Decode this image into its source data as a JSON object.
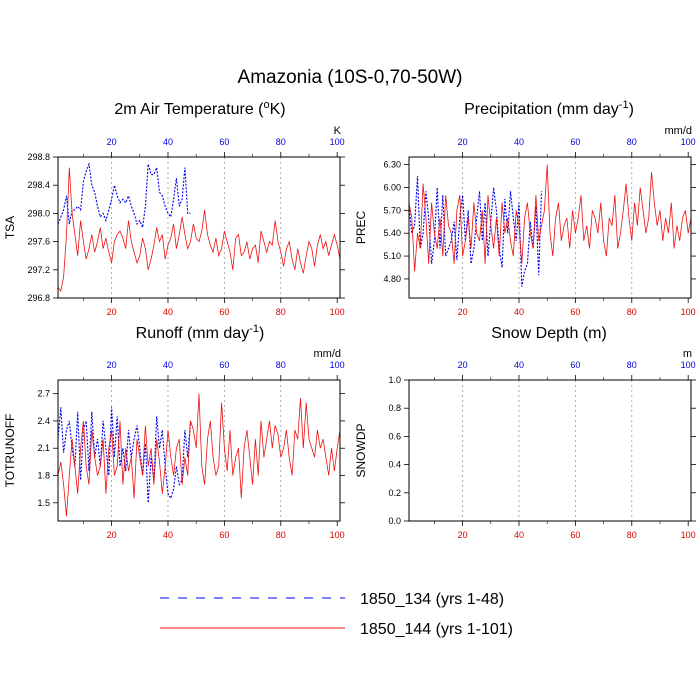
{
  "figure": {
    "title": "Amazonia (10S-0,70-50W)"
  },
  "colors": {
    "series_a": "#0000ee",
    "series_b": "#ee1111",
    "top_ticks": "#0000dd",
    "bottom_ticks": "#dd0000",
    "grid": "#999999"
  },
  "legend": {
    "entries": [
      {
        "label": "1850_134 (yrs 1-48)",
        "style": "dashed",
        "color_key": "series_a"
      },
      {
        "label": "1850_144 (yrs 1-101)",
        "style": "solid",
        "color_key": "series_b"
      }
    ]
  },
  "chart_data": [
    {
      "type": "line",
      "title_main": "2m Air Temperature (",
      "title_sup": "o",
      "title_after": "K)",
      "ylabel": "TSA",
      "units": "K",
      "xlim": [
        1,
        101
      ],
      "ylim": [
        296.8,
        298.8
      ],
      "yticks": [
        "296.8",
        "297.2",
        "297.6",
        "298.0",
        "298.4",
        "298.8"
      ],
      "xticks_top": [
        "20",
        "40",
        "60",
        "80",
        "100"
      ],
      "xticks_bottom": [
        "20",
        "40",
        "60",
        "80",
        "100"
      ],
      "series": [
        {
          "name": "1850_134 (yrs 1-48)",
          "x_start": 1,
          "values": [
            297.85,
            297.95,
            298.05,
            298.25,
            297.85,
            298.05,
            298.05,
            298.1,
            298.05,
            298.45,
            298.6,
            298.7,
            298.4,
            298.3,
            298.1,
            297.95,
            298.0,
            297.9,
            298.05,
            298.2,
            298.4,
            298.25,
            298.15,
            298.2,
            298.15,
            298.25,
            298.1,
            298.0,
            297.85,
            297.9,
            297.8,
            298.1,
            298.7,
            298.55,
            298.55,
            298.65,
            298.3,
            298.25,
            298.1,
            298.0,
            297.95,
            298.2,
            298.5,
            298.1,
            298.2,
            298.65,
            298.0,
            298.0
          ]
        },
        {
          "name": "1850_144 (yrs 1-101)",
          "x_start": 1,
          "values": [
            296.95,
            296.9,
            297.1,
            297.7,
            298.65,
            298.0,
            297.7,
            297.4,
            297.9,
            297.6,
            297.35,
            297.5,
            297.7,
            297.45,
            297.6,
            297.8,
            297.5,
            297.65,
            297.45,
            297.3,
            297.6,
            297.7,
            297.75,
            297.65,
            297.5,
            297.9,
            297.6,
            297.45,
            297.3,
            297.4,
            297.65,
            297.5,
            297.2,
            297.35,
            297.55,
            297.8,
            297.6,
            297.7,
            297.35,
            297.55,
            297.65,
            297.85,
            297.5,
            297.7,
            297.95,
            297.7,
            297.5,
            297.6,
            297.85,
            297.65,
            297.6,
            297.75,
            298.05,
            297.7,
            297.55,
            297.45,
            297.65,
            297.4,
            297.5,
            297.75,
            297.6,
            297.45,
            297.2,
            297.65,
            297.7,
            297.4,
            297.45,
            297.6,
            297.35,
            297.5,
            297.55,
            297.3,
            297.75,
            297.6,
            297.45,
            297.6,
            297.55,
            297.9,
            297.6,
            297.45,
            297.25,
            297.5,
            297.6,
            297.35,
            297.2,
            297.5,
            297.3,
            297.15,
            297.4,
            297.6,
            297.5,
            297.25,
            297.55,
            297.7,
            297.5,
            297.6,
            297.4,
            297.55,
            297.7,
            297.55,
            297.35
          ]
        }
      ]
    },
    {
      "type": "line",
      "title_main": "Precipitation (mm day",
      "title_sup": "-1",
      "title_after": ")",
      "ylabel": "PREC",
      "units": "mm/d",
      "xlim": [
        1,
        101
      ],
      "ylim": [
        4.55,
        6.4
      ],
      "yticks": [
        "4.80",
        "5.10",
        "5.40",
        "5.70",
        "6.00",
        "6.30"
      ],
      "xticks_top": [
        "20",
        "40",
        "60",
        "80",
        "100"
      ],
      "xticks_bottom": [
        "20",
        "40",
        "60",
        "80",
        "100"
      ],
      "series": [
        {
          "name": "1850_134 (yrs 1-48)",
          "x_start": 1,
          "values": [
            5.75,
            5.4,
            5.5,
            6.15,
            5.2,
            5.4,
            5.95,
            5.6,
            5.0,
            5.3,
            6.0,
            5.2,
            5.9,
            5.1,
            5.2,
            5.3,
            5.55,
            5.05,
            5.6,
            5.9,
            5.3,
            5.7,
            5.0,
            5.2,
            5.6,
            5.95,
            5.3,
            5.8,
            5.1,
            5.55,
            6.0,
            5.7,
            5.2,
            4.95,
            5.85,
            5.4,
            5.95,
            5.6,
            5.3,
            5.8,
            4.7,
            4.9,
            5.0,
            5.55,
            5.2,
            5.75,
            4.85,
            5.95
          ]
        },
        {
          "name": "1850_144 (yrs 1-101)",
          "x_start": 1,
          "values": [
            5.8,
            5.6,
            4.9,
            5.4,
            5.2,
            6.05,
            5.6,
            5.0,
            5.8,
            5.4,
            5.2,
            5.6,
            5.1,
            5.9,
            5.5,
            5.4,
            5.0,
            5.7,
            5.9,
            5.1,
            5.3,
            5.6,
            5.2,
            5.8,
            5.4,
            5.3,
            5.7,
            5.0,
            5.9,
            5.5,
            5.2,
            5.6,
            5.1,
            5.8,
            5.4,
            5.6,
            5.3,
            5.1,
            5.7,
            5.5,
            5.0,
            5.6,
            5.8,
            5.4,
            5.2,
            5.9,
            5.3,
            5.5,
            5.7,
            6.3,
            5.4,
            5.1,
            5.6,
            5.8,
            5.3,
            5.5,
            5.6,
            5.2,
            5.7,
            5.4,
            5.6,
            5.9,
            5.3,
            5.5,
            5.2,
            5.7,
            5.6,
            5.4,
            5.8,
            5.3,
            5.1,
            5.6,
            5.5,
            5.9,
            5.2,
            5.4,
            5.7,
            6.05,
            5.6,
            5.3,
            5.8,
            5.5,
            6.0,
            5.7,
            5.4,
            5.6,
            6.2,
            5.8,
            5.5,
            5.7,
            5.3,
            5.6,
            5.4,
            5.8,
            5.2,
            5.5,
            5.3,
            5.6,
            5.7,
            5.4,
            5.6
          ]
        }
      ]
    },
    {
      "type": "line",
      "title_main": "Runoff (mm day",
      "title_sup": "-1",
      "title_after": ")",
      "ylabel": "TOTRUNOFF",
      "units": "mm/d",
      "xlim": [
        1,
        101
      ],
      "ylim": [
        1.3,
        2.85
      ],
      "yticks": [
        "1.5",
        "1.8",
        "2.1",
        "2.4",
        "2.7"
      ],
      "xticks_top": [
        "20",
        "40",
        "60",
        "80",
        "100"
      ],
      "xticks_bottom": [
        "20",
        "40",
        "60",
        "80",
        "100"
      ],
      "series": [
        {
          "name": "1850_134 (yrs 1-48)",
          "x_start": 1,
          "values": [
            2.2,
            2.55,
            2.05,
            2.3,
            2.4,
            2.1,
            1.9,
            2.5,
            1.75,
            2.3,
            2.4,
            1.85,
            2.5,
            2.0,
            2.2,
            1.9,
            2.4,
            2.1,
            1.8,
            2.55,
            2.0,
            2.45,
            1.9,
            2.1,
            1.85,
            2.3,
            2.0,
            2.2,
            2.35,
            2.1,
            1.8,
            2.15,
            1.5,
            2.0,
            1.75,
            2.45,
            2.1,
            2.3,
            1.9,
            1.6,
            1.55,
            1.65,
            1.9,
            1.7,
            1.75,
            2.3,
            2.0,
            2.4
          ]
        },
        {
          "name": "1850_144 (yrs 1-101)",
          "x_start": 1,
          "values": [
            1.8,
            1.95,
            1.7,
            1.35,
            1.8,
            2.2,
            1.9,
            1.6,
            2.1,
            2.4,
            1.9,
            1.7,
            2.3,
            2.0,
            1.8,
            1.9,
            2.2,
            1.6,
            2.1,
            2.3,
            1.8,
            1.9,
            2.4,
            1.7,
            2.1,
            1.85,
            2.0,
            1.55,
            2.2,
            2.0,
            1.8,
            2.35,
            1.9,
            2.1,
            1.7,
            2.2,
            1.95,
            1.6,
            1.9,
            2.3,
            2.0,
            1.8,
            2.1,
            2.2,
            1.7,
            2.0,
            1.8,
            2.4,
            2.3,
            2.1,
            2.7,
            1.9,
            1.7,
            2.2,
            2.4,
            2.0,
            1.8,
            1.9,
            2.6,
            2.1,
            1.85,
            2.3,
            1.8,
            2.0,
            2.1,
            1.55,
            2.1,
            2.3,
            2.0,
            1.7,
            2.2,
            1.8,
            2.4,
            2.0,
            2.2,
            2.4,
            2.1,
            2.35,
            2.25,
            2.0,
            2.1,
            2.3,
            2.0,
            1.8,
            2.3,
            2.2,
            2.65,
            2.1,
            2.6,
            2.2,
            2.1,
            2.0,
            2.3,
            2.1,
            2.2,
            2.0,
            1.8,
            2.1,
            1.85,
            2.1,
            2.3
          ]
        }
      ]
    },
    {
      "type": "line",
      "title_main": "Snow Depth (m)",
      "title_sup": "",
      "title_after": "",
      "ylabel": "SNOWDP",
      "units": "m",
      "xlim": [
        1,
        101
      ],
      "ylim": [
        0.0,
        1.0
      ],
      "yticks": [
        "0.0",
        "0.2",
        "0.4",
        "0.6",
        "0.8",
        "1.0"
      ],
      "xticks_top": [
        "20",
        "40",
        "60",
        "80",
        "100"
      ],
      "xticks_bottom": [
        "20",
        "40",
        "60",
        "80",
        "100"
      ],
      "series": []
    }
  ]
}
